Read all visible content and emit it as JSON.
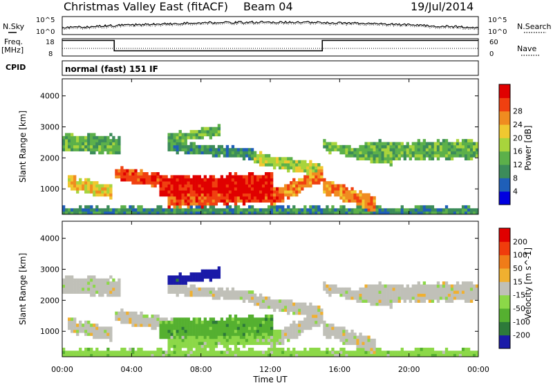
{
  "header": {
    "title": "Christmas Valley East (fitACF)",
    "beam": "Beam 04",
    "date": "19/Jul/2014"
  },
  "panels_top": {
    "nsky_label": "N.Sky",
    "nsearch_label": "N.Search",
    "freq_label_line1": "Freq.",
    "freq_label_line2": "[MHz]",
    "nave_label": "Nave",
    "cpid_label": "CPID",
    "cpid_value": "normal (fast) 151 IF",
    "noise_ticks": [
      "10^5",
      "10^0"
    ],
    "freq_ticks": [
      "18",
      "8"
    ],
    "nave_ticks": [
      "60",
      "0"
    ]
  },
  "colors": {
    "power": [
      "#0000e0",
      "#1f5fb8",
      "#3c8c5a",
      "#5cb04a",
      "#a8d43c",
      "#f0c830",
      "#f08c20",
      "#f04010",
      "#e00000"
    ],
    "velocity": [
      "#1a1aa8",
      "#2d7a3a",
      "#55b030",
      "#8cd848",
      "#c0c0b8",
      "#f0b030",
      "#f07c18",
      "#f03c0c",
      "#e00000"
    ]
  },
  "chart_data": [
    {
      "type": "heatmap",
      "name": "power",
      "ylabel": "Slant Range [km]",
      "ylim": [
        180,
        4550
      ],
      "yticks": [
        1000,
        2000,
        3000,
        4000
      ],
      "xlim": [
        0,
        24
      ],
      "colorbar_label": "Power [dB]",
      "colorbar_ticks": [
        "4",
        "8",
        "12",
        "16",
        "20",
        "24",
        "28"
      ],
      "colorbar_range": [
        0,
        32
      ]
    },
    {
      "type": "heatmap",
      "name": "velocity",
      "ylabel": "Slant Range [km]",
      "ylim": [
        180,
        4550
      ],
      "yticks": [
        1000,
        2000,
        3000,
        4000
      ],
      "xlim": [
        0,
        24
      ],
      "xlabel": "Time UT",
      "xticks": [
        "00:00",
        "04:00",
        "08:00",
        "12:00",
        "16:00",
        "20:00",
        "00:00"
      ],
      "colorbar_label": "Velocity [m s^-1]",
      "colorbar_ticks": [
        "200",
        "100",
        "50",
        "15",
        "-15",
        "-50",
        "-100",
        "-200"
      ]
    }
  ]
}
